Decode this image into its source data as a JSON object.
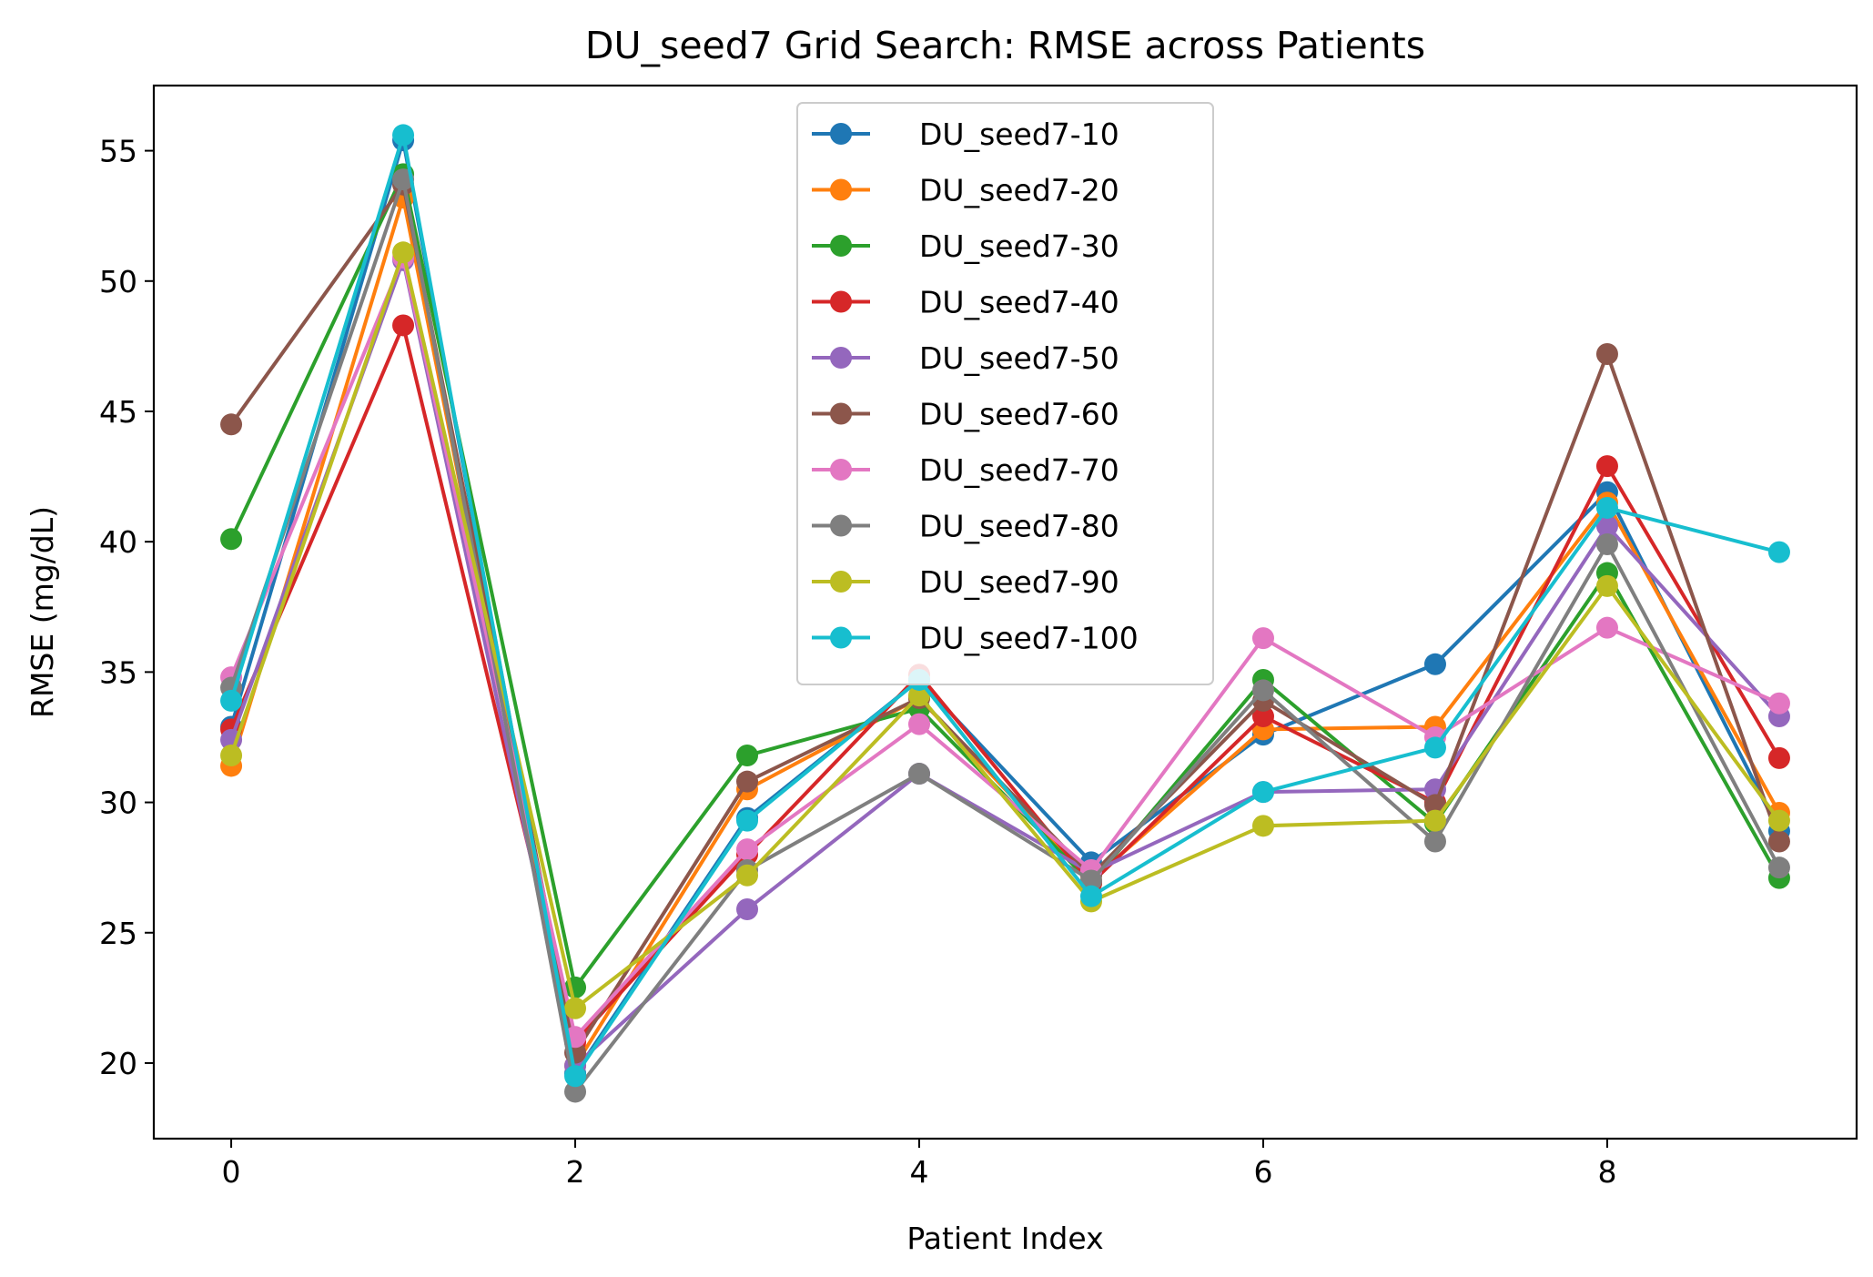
{
  "chart_data": {
    "type": "line",
    "title": "DU_seed7 Grid Search: RMSE across Patients",
    "xlabel": "Patient Index",
    "ylabel": "RMSE (mg/dL)",
    "xlim": [
      -0.45,
      9.45
    ],
    "ylim": [
      17.1,
      57.5
    ],
    "x": [
      0,
      1,
      2,
      3,
      4,
      5,
      6,
      7,
      8,
      9
    ],
    "xticks": [
      0,
      2,
      4,
      6,
      8
    ],
    "yticks": [
      20,
      25,
      30,
      35,
      40,
      45,
      50,
      55
    ],
    "grid": false,
    "legend_position": "top-center",
    "series": [
      {
        "name": "DU_seed7-10",
        "color": "#1f77b4",
        "values": [
          32.9,
          55.4,
          19.6,
          29.4,
          34.7,
          27.7,
          32.6,
          35.3,
          41.9,
          28.9
        ]
      },
      {
        "name": "DU_seed7-20",
        "color": "#ff7f0e",
        "values": [
          31.4,
          53.2,
          19.9,
          30.5,
          34.0,
          27.0,
          32.8,
          32.9,
          41.5,
          29.6
        ]
      },
      {
        "name": "DU_seed7-30",
        "color": "#2ca02c",
        "values": [
          40.1,
          54.1,
          22.9,
          31.8,
          33.6,
          26.9,
          34.7,
          29.2,
          38.8,
          27.1
        ]
      },
      {
        "name": "DU_seed7-40",
        "color": "#d62728",
        "values": [
          32.8,
          48.3,
          20.8,
          28.0,
          34.9,
          26.9,
          33.3,
          30.0,
          42.9,
          31.7
        ]
      },
      {
        "name": "DU_seed7-50",
        "color": "#9467bd",
        "values": [
          32.4,
          50.8,
          19.9,
          25.9,
          31.1,
          27.3,
          30.4,
          30.5,
          40.6,
          33.3
        ]
      },
      {
        "name": "DU_seed7-60",
        "color": "#8c564b",
        "values": [
          44.5,
          53.7,
          20.4,
          30.8,
          34.0,
          27.2,
          33.9,
          29.9,
          47.2,
          28.5
        ]
      },
      {
        "name": "DU_seed7-70",
        "color": "#e377c2",
        "values": [
          34.8,
          50.9,
          21.0,
          28.2,
          33.0,
          27.4,
          36.3,
          32.5,
          36.7,
          33.8
        ]
      },
      {
        "name": "DU_seed7-80",
        "color": "#7f7f7f",
        "values": [
          34.4,
          53.9,
          18.9,
          27.4,
          31.1,
          27.0,
          34.3,
          28.5,
          39.9,
          27.5
        ]
      },
      {
        "name": "DU_seed7-90",
        "color": "#bcbd22",
        "values": [
          31.8,
          51.1,
          22.1,
          27.2,
          34.1,
          26.2,
          29.1,
          29.3,
          38.3,
          29.3
        ]
      },
      {
        "name": "DU_seed7-100",
        "color": "#17becf",
        "values": [
          33.9,
          55.6,
          19.5,
          29.3,
          34.7,
          26.4,
          30.4,
          32.1,
          41.3,
          39.6
        ]
      }
    ]
  }
}
